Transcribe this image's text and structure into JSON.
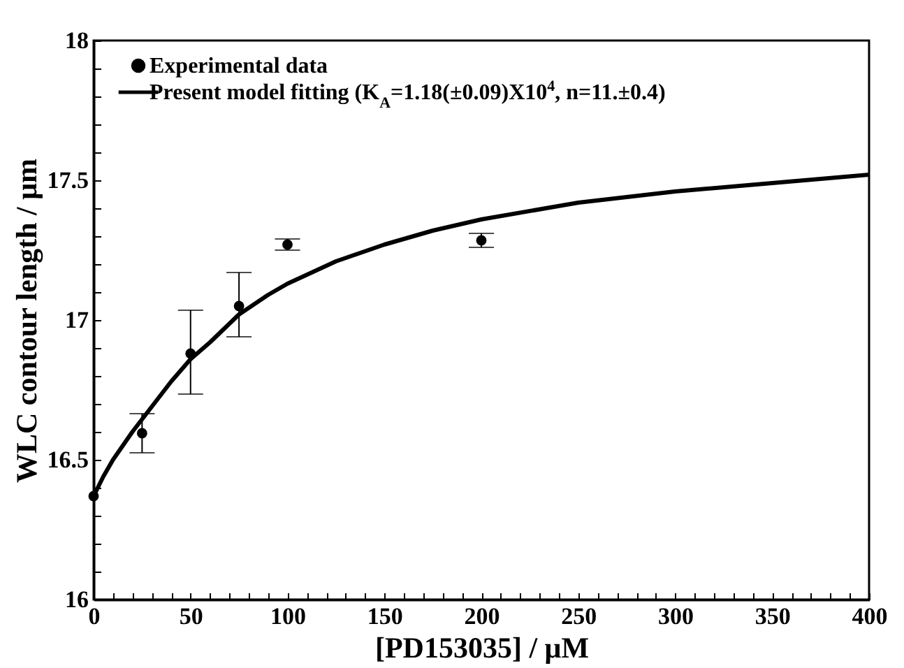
{
  "chart_data": {
    "type": "scatter",
    "xlabel": "[PD153035] / μM",
    "ylabel": "WLC contour length / μm",
    "xlim": [
      0,
      400
    ],
    "ylim": [
      16,
      18
    ],
    "xticks": [
      0,
      {
        "value": 10,
        "label": null
      },
      {
        "value": 20,
        "label": null
      },
      {
        "value": 30,
        "label": null
      },
      {
        "value": 40,
        "label": null
      },
      50,
      {
        "value": 60,
        "label": null
      },
      {
        "value": 70,
        "label": null
      },
      {
        "value": 80,
        "label": null
      },
      {
        "value": 90,
        "label": null
      },
      100,
      {
        "value": 110,
        "label": null
      },
      {
        "value": 120,
        "label": null
      },
      {
        "value": 130,
        "label": null
      },
      {
        "value": 140,
        "label": null
      },
      150,
      {
        "value": 160,
        "label": null
      },
      {
        "value": 170,
        "label": null
      },
      {
        "value": 180,
        "label": null
      },
      {
        "value": 190,
        "label": null
      },
      200,
      {
        "value": 210,
        "label": null
      },
      {
        "value": 220,
        "label": null
      },
      {
        "value": 230,
        "label": null
      },
      {
        "value": 240,
        "label": null
      },
      250,
      {
        "value": 260,
        "label": null
      },
      {
        "value": 270,
        "label": null
      },
      {
        "value": 280,
        "label": null
      },
      {
        "value": 290,
        "label": null
      },
      300,
      {
        "value": 310,
        "label": null
      },
      {
        "value": 320,
        "label": null
      },
      {
        "value": 330,
        "label": null
      },
      {
        "value": 340,
        "label": null
      },
      350,
      {
        "value": 360,
        "label": null
      },
      {
        "value": 370,
        "label": null
      },
      {
        "value": 380,
        "label": null
      },
      {
        "value": 390,
        "label": null
      },
      400
    ],
    "yticks": [
      16,
      {
        "value": 16.1,
        "label": null
      },
      {
        "value": 16.2,
        "label": null
      },
      {
        "value": 16.3,
        "label": null
      },
      {
        "value": 16.4,
        "label": null
      },
      16.5,
      {
        "value": 16.6,
        "label": null
      },
      {
        "value": 16.7,
        "label": null
      },
      {
        "value": 16.8,
        "label": null
      },
      {
        "value": 16.9,
        "label": null
      },
      17,
      {
        "value": 17.1,
        "label": null
      },
      {
        "value": 17.2,
        "label": null
      },
      {
        "value": 17.3,
        "label": null
      },
      {
        "value": 17.4,
        "label": null
      },
      17.5,
      {
        "value": 17.6,
        "label": null
      },
      {
        "value": 17.7,
        "label": null
      },
      {
        "value": 17.8,
        "label": null
      },
      {
        "value": 17.9,
        "label": null
      },
      18
    ],
    "legend": "top left",
    "grid": false,
    "series": [
      {
        "name": "Experimental data",
        "type": "scatter",
        "marker": "circle",
        "color": "#000000",
        "x": [
          0,
          25,
          50,
          75,
          100,
          200
        ],
        "values": [
          16.37,
          16.595,
          16.88,
          17.05,
          17.27,
          17.285
        ],
        "errors": [
          null,
          [
            16.525,
            16.665
          ],
          [
            16.735,
            17.035
          ],
          [
            16.94,
            17.17
          ],
          [
            17.25,
            17.29
          ],
          [
            17.26,
            17.31
          ]
        ]
      },
      {
        "name": "Present model fitting (K$_{A}$=1.18(±0.09)X10$^{4}$, n=11.±0.4)",
        "type": "line",
        "line_style": "solid",
        "color": "#000000",
        "x": [
          0,
          5,
          10,
          20,
          30,
          40,
          50,
          60,
          75,
          90,
          100,
          125,
          150,
          175,
          200,
          250,
          300,
          350,
          400
        ],
        "values": [
          16.37,
          16.44,
          16.5,
          16.6,
          16.69,
          16.78,
          16.86,
          16.92,
          17.02,
          17.09,
          17.13,
          17.21,
          17.27,
          17.32,
          17.36,
          17.42,
          17.46,
          17.49,
          17.52
        ]
      }
    ]
  }
}
